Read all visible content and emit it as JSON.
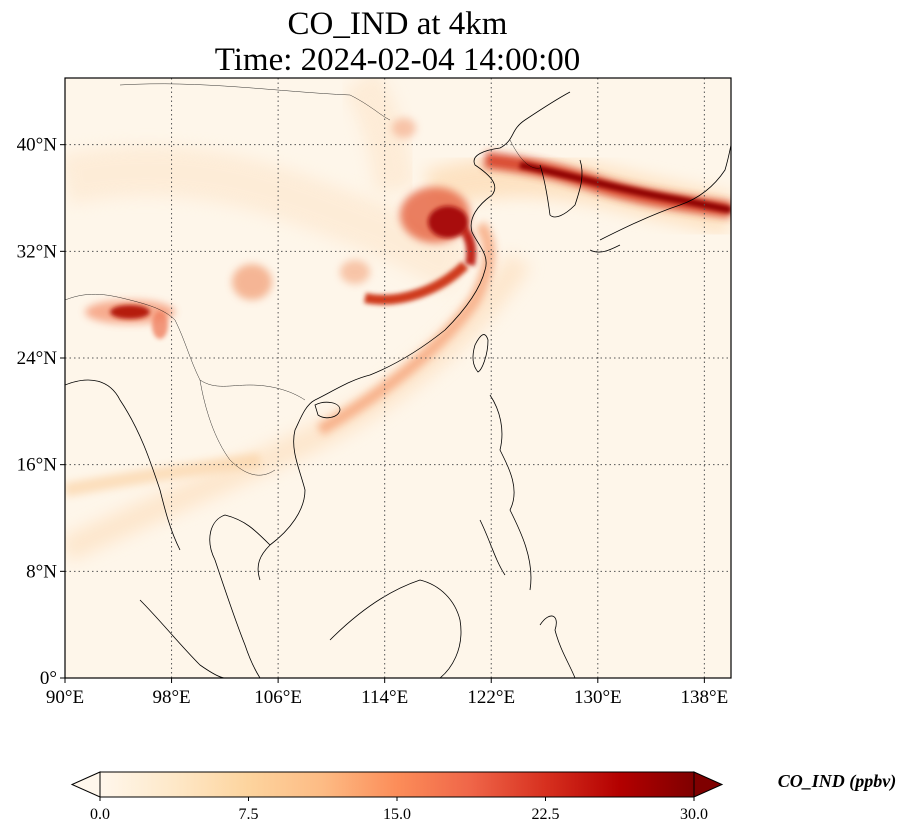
{
  "title": {
    "line1": "CO_IND at 4km",
    "line2": "Time: 2024-02-04 14:00:00"
  },
  "map": {
    "projection": "PlateCarree",
    "lon_range": [
      90,
      140
    ],
    "lat_range": [
      0,
      45
    ],
    "gridlines": "dotted",
    "lon_ticks": [
      {
        "value": 90,
        "label": "90°E"
      },
      {
        "value": 98,
        "label": "98°E"
      },
      {
        "value": 106,
        "label": "106°E"
      },
      {
        "value": 114,
        "label": "114°E"
      },
      {
        "value": 122,
        "label": "122°E"
      },
      {
        "value": 130,
        "label": "130°E"
      },
      {
        "value": 138,
        "label": "138°E"
      }
    ],
    "lat_ticks": [
      {
        "value": 0,
        "label": "0°"
      },
      {
        "value": 8,
        "label": "8°N"
      },
      {
        "value": 16,
        "label": "16°N"
      },
      {
        "value": 24,
        "label": "24°N"
      },
      {
        "value": 32,
        "label": "32°N"
      },
      {
        "value": 40,
        "label": "40°N"
      }
    ]
  },
  "colorbar": {
    "label": "CO_IND (ppbv)",
    "colormap": "OrRd",
    "range": [
      0,
      30
    ],
    "extend": "both",
    "ticks": [
      {
        "value": 0,
        "label": "0.0"
      },
      {
        "value": 7.5,
        "label": "7.5"
      },
      {
        "value": 15,
        "label": "15.0"
      },
      {
        "value": 22.5,
        "label": "22.5"
      },
      {
        "value": 30,
        "label": "30.0"
      }
    ]
  },
  "colors": {
    "low": "#fff7ec",
    "mid": "#fdbb84",
    "high": "#d7301f",
    "max": "#7f0000"
  }
}
